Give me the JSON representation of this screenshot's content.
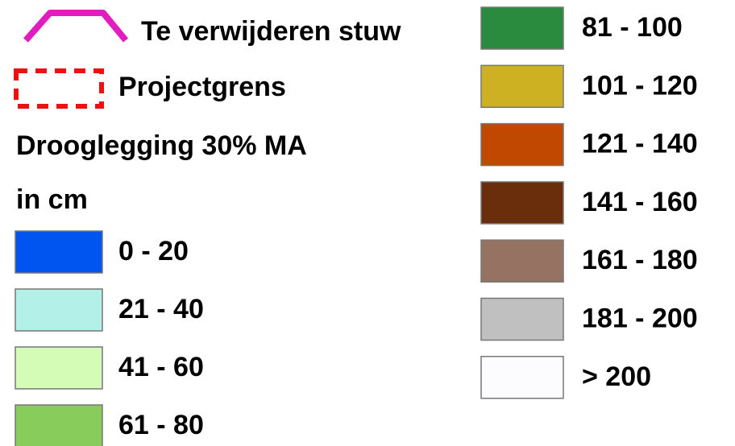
{
  "legend": {
    "symbols": [
      {
        "label": "Te verwijderen stuw",
        "color": "#e21cc0"
      },
      {
        "label": "Projectgrens",
        "color": "#ee1111"
      }
    ],
    "heading": [
      "Drooglegging 30% MA",
      "in cm"
    ],
    "classes": [
      {
        "label": "0 - 20",
        "color": "#0055f0"
      },
      {
        "label": "21 - 40",
        "color": "#b2f0e8"
      },
      {
        "label": "41 - 60",
        "color": "#d4fcb6"
      },
      {
        "label": "61 - 80",
        "color": "#88cc5c"
      },
      {
        "label": "81 - 100",
        "color": "#2a8a3e"
      },
      {
        "label": "101 - 120",
        "color": "#cdb123"
      },
      {
        "label": "121 - 140",
        "color": "#c04800"
      },
      {
        "label": "141 - 160",
        "color": "#6b2e0c"
      },
      {
        "label": "161 - 180",
        "color": "#967262"
      },
      {
        "label": "181 - 200",
        "color": "#c0c0c0"
      },
      {
        "label": "> 200",
        "color": "#fcfcff"
      }
    ]
  }
}
